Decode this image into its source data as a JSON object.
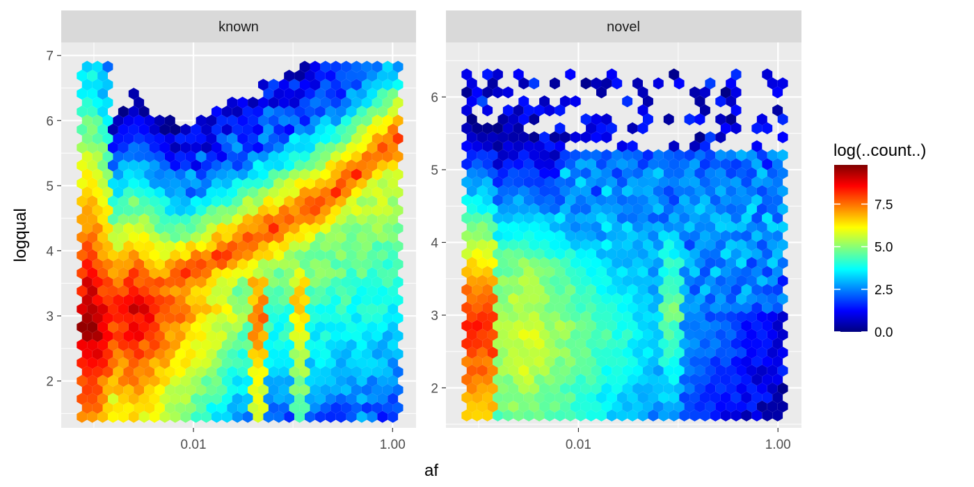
{
  "chart_data": {
    "type": "hexbin",
    "xlabel": "af",
    "ylabel": "logqual",
    "x_scale": "log10",
    "xlim": [
      0.00047,
      1.72
    ],
    "x_ticks": [
      {
        "value": 0.01,
        "label": "0.01"
      },
      {
        "value": 1.0,
        "label": "1.00"
      }
    ],
    "grid": true,
    "legend": {
      "title": "log(..count..)",
      "position": "right",
      "range": [
        0,
        9.8
      ],
      "ticks": [
        {
          "value": 0.0,
          "label": "0.0"
        },
        {
          "value": 2.5,
          "label": "2.5"
        },
        {
          "value": 5.0,
          "label": "5.0"
        },
        {
          "value": 7.5,
          "label": "7.5"
        }
      ],
      "colors": [
        "#00007F",
        "#0000FF",
        "#007FFF",
        "#00FFFF",
        "#7FFF7F",
        "#FFFF00",
        "#FF7F00",
        "#FF0000",
        "#7F0000"
      ]
    },
    "panels": [
      {
        "strip": "known",
        "ylim": [
          1.28,
          7.2
        ],
        "y_ticks": [
          {
            "value": 2,
            "label": "2"
          },
          {
            "value": 3,
            "label": "3"
          },
          {
            "value": 4,
            "label": "4"
          },
          {
            "value": 5,
            "label": "5"
          },
          {
            "value": 6,
            "label": "6"
          },
          {
            "value": 7,
            "label": "7"
          }
        ],
        "density_ridge": {
          "log10_af": [
            -3.05,
            -2.5,
            -2.0,
            -1.5,
            -1.0,
            -0.5,
            0.0
          ],
          "logqual": [
            3.1,
            3.3,
            3.7,
            4.1,
            4.5,
            5.0,
            5.7
          ]
        },
        "hot_spots": [
          {
            "log10_af": -3.05,
            "logqual": 2.9,
            "log_count": 9.6
          },
          {
            "log10_af": -2.6,
            "logqual": 3.1,
            "log_count": 8.8
          },
          {
            "log10_af": -1.3,
            "logqual": 2.9,
            "log_count": 7.2
          },
          {
            "log10_af": -0.9,
            "logqual": 3.3,
            "log_count": 6.5
          }
        ]
      },
      {
        "strip": "novel",
        "ylim": [
          1.45,
          6.75
        ],
        "y_ticks": [
          {
            "value": 2,
            "label": "2"
          },
          {
            "value": 3,
            "label": "3"
          },
          {
            "value": 4,
            "label": "4"
          },
          {
            "value": 5,
            "label": "5"
          },
          {
            "value": 6,
            "label": "6"
          }
        ],
        "hot_spots": [
          {
            "log10_af": -3.05,
            "logqual": 2.8,
            "log_count": 8.0
          },
          {
            "log10_af": -2.6,
            "logqual": 2.6,
            "log_count": 5.8
          },
          {
            "log10_af": -1.1,
            "logqual": 3.1,
            "log_count": 4.8
          }
        ]
      }
    ]
  }
}
